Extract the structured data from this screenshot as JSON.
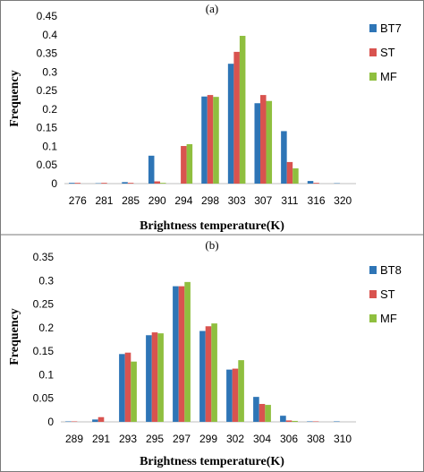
{
  "chart_data": [
    {
      "type": "bar",
      "panel_label": "(a)",
      "categories": [
        "276",
        "281",
        "285",
        "290",
        "294",
        "298",
        "303",
        "307",
        "311",
        "316",
        "320"
      ],
      "series": [
        {
          "name": "BT7",
          "color": "#2e75b6",
          "values": [
            0.002,
            0.001,
            0.004,
            0.075,
            0.0,
            0.234,
            0.322,
            0.216,
            0.141,
            0.007,
            0.001
          ]
        },
        {
          "name": "ST",
          "color": "#d9534f",
          "values": [
            0.002,
            0.002,
            0.002,
            0.006,
            0.101,
            0.238,
            0.354,
            0.238,
            0.058,
            0.002,
            0.0
          ]
        },
        {
          "name": "MF",
          "color": "#8fbf3f",
          "values": [
            0.0,
            0.0,
            0.0,
            0.002,
            0.106,
            0.233,
            0.397,
            0.222,
            0.041,
            0.0,
            0.0
          ]
        }
      ],
      "ylabel": "Frequency",
      "xlabel": "Brightness temperature(K)",
      "ylim": [
        0,
        0.45
      ],
      "yticks": [
        "0",
        "0.05",
        "0.1",
        "0.15",
        "0.2",
        "0.25",
        "0.3",
        "0.35",
        "0.4",
        "0.45"
      ],
      "legend": "right",
      "grid": false
    },
    {
      "type": "bar",
      "panel_label": "(b)",
      "categories": [
        "289",
        "291",
        "293",
        "295",
        "297",
        "299",
        "302",
        "304",
        "306",
        "308",
        "310"
      ],
      "series": [
        {
          "name": "BT8",
          "color": "#2e75b6",
          "values": [
            0.001,
            0.005,
            0.144,
            0.184,
            0.288,
            0.193,
            0.111,
            0.053,
            0.013,
            0.001,
            0.001
          ]
        },
        {
          "name": "ST",
          "color": "#d9534f",
          "values": [
            0.001,
            0.01,
            0.147,
            0.19,
            0.288,
            0.203,
            0.113,
            0.038,
            0.003,
            0.001,
            0.0
          ]
        },
        {
          "name": "MF",
          "color": "#8fbf3f",
          "values": [
            0.0,
            0.0,
            0.128,
            0.188,
            0.297,
            0.209,
            0.131,
            0.036,
            0.002,
            0.0,
            0.0
          ]
        }
      ],
      "ylabel": "Frequency",
      "xlabel": "Brightness temperature(K)",
      "ylim": [
        0,
        0.35
      ],
      "yticks": [
        "0",
        "0.05",
        "0.1",
        "0.15",
        "0.2",
        "0.25",
        "0.3",
        "0.35"
      ],
      "legend": "right",
      "grid": false
    }
  ]
}
